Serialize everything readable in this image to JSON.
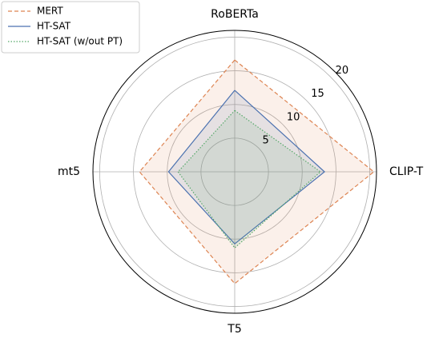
{
  "chart_data": {
    "type": "radar",
    "categories": [
      "RoBERTa",
      "CLIP-T",
      "T5",
      "mt5"
    ],
    "series": [
      {
        "name": "MERT",
        "color": "#dd8452",
        "dash": "dashed",
        "values": [
          16.6,
          20.6,
          16.6,
          14.1
        ]
      },
      {
        "name": "HT-SAT",
        "color": "#4c72b0",
        "dash": "solid",
        "values": [
          12.1,
          13.3,
          10.7,
          9.8
        ]
      },
      {
        "name": "HT-SAT (w/out PT)",
        "color": "#55a868",
        "dash": "dotted",
        "values": [
          9.1,
          12.7,
          11.3,
          8.4
        ]
      }
    ],
    "ylim": [
      0,
      21
    ],
    "yticks": [
      5,
      10,
      15,
      20
    ],
    "grid": true,
    "legend": "upper left"
  }
}
